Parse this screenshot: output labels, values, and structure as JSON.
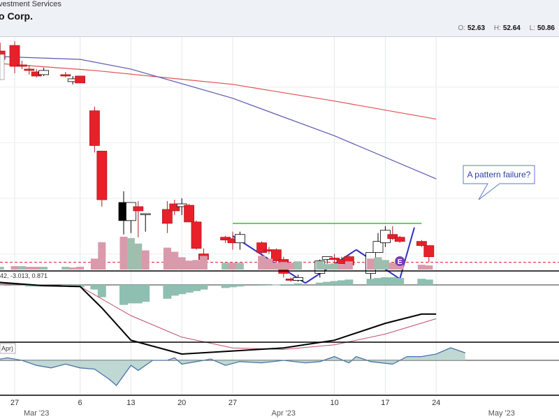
{
  "header": {
    "subtitle": "vestment Services",
    "title": "o Corp.",
    "ohlc": [
      {
        "label": "O:",
        "value": "52.63"
      },
      {
        "label": "H:",
        "value": "52.64"
      },
      {
        "label": "L:",
        "value": "50.86"
      }
    ]
  },
  "annotation": {
    "text": "A pattern failure?"
  },
  "macd_label": "42, -3.013, 0.871",
  "lower_label": "Apr)",
  "earnings_badge": "E",
  "x_axis": {
    "ticks": [
      {
        "day": -1,
        "label": "27"
      },
      {
        "day": 8,
        "label": "6"
      },
      {
        "day": 15,
        "label": "13"
      },
      {
        "day": 22,
        "label": "20"
      },
      {
        "day": 29,
        "label": "27"
      },
      {
        "day": 43,
        "label": "10"
      },
      {
        "day": 50,
        "label": "17"
      },
      {
        "day": 57,
        "label": "24"
      }
    ],
    "months": [
      {
        "day": 2,
        "label": "Mar '23"
      },
      {
        "day": 36,
        "label": "Apr '23"
      },
      {
        "day": 66,
        "label": "May '23"
      }
    ]
  },
  "colors": {
    "up": "#ffffff",
    "down": "#e8202a",
    "black_candle": "#000000",
    "ma_red": "#e05050",
    "ma_blue": "#5a5ab0",
    "trendline": "#3030c0",
    "resistance": "#22cc22",
    "vol_up": "#9ebfae",
    "vol_down": "#d99aab",
    "hist": "#8fbfb0",
    "macd": "#000000",
    "signal": "#c0506a"
  },
  "chart_data": {
    "type": "candlestick",
    "x_unit": "day offset from Mar 1 2023",
    "candles": [
      {
        "d": -3,
        "o": 60.6,
        "h": 61.2,
        "l": 59.0,
        "c": 60.0
      },
      {
        "d": -1,
        "o": 61.0,
        "h": 61.3,
        "l": 59.0,
        "c": 59.5
      },
      {
        "d": 0,
        "o": 59.6,
        "h": 59.9,
        "l": 59.3,
        "c": 59.5
      },
      {
        "d": 1,
        "o": 59.3,
        "h": 59.6,
        "l": 58.9,
        "c": 59.2
      },
      {
        "d": 2,
        "o": 59.1,
        "h": 59.3,
        "l": 58.7,
        "c": 58.8
      },
      {
        "d": 3,
        "o": 58.9,
        "h": 59.4,
        "l": 58.8,
        "c": 59.2
      },
      {
        "d": 6,
        "o": 58.9,
        "h": 59.1,
        "l": 58.7,
        "c": 58.8
      },
      {
        "d": 7,
        "o": 58.4,
        "h": 58.8,
        "l": 58.2,
        "c": 58.6
      },
      {
        "d": 8,
        "o": 58.8,
        "h": 58.8,
        "l": 58.3,
        "c": 58.3
      },
      {
        "d": 10,
        "o": 56.3,
        "h": 56.6,
        "l": 53.3,
        "c": 53.8
      },
      {
        "d": 11,
        "o": 53.4,
        "h": 53.4,
        "l": 49.4,
        "c": 49.9
      },
      {
        "d": 14,
        "o": 49.7,
        "h": 50.5,
        "l": 47.4,
        "c": 48.4
      },
      {
        "d": 15,
        "o": 48.4,
        "h": 49.6,
        "l": 47.5,
        "c": 49.7
      },
      {
        "d": 16,
        "o": 49.4,
        "h": 49.8,
        "l": 47.2,
        "c": 49.1
      },
      {
        "d": 17,
        "o": 48.9,
        "h": 48.9,
        "l": 47.6,
        "c": 48.9
      },
      {
        "d": 20,
        "o": 49.2,
        "h": 49.8,
        "l": 47.5,
        "c": 48.2
      },
      {
        "d": 21,
        "o": 49.6,
        "h": 49.9,
        "l": 48.8,
        "c": 49.1
      },
      {
        "d": 22,
        "o": 49.4,
        "h": 50.0,
        "l": 48.8,
        "c": 49.6
      },
      {
        "d": 23,
        "o": 49.5,
        "h": 49.6,
        "l": 48.3,
        "c": 48.3
      },
      {
        "d": 24,
        "o": 48.3,
        "h": 48.4,
        "l": 46.3,
        "c": 46.4
      },
      {
        "d": 25,
        "o": 46.0,
        "h": 46.4,
        "l": 45.0,
        "c": 45.6
      },
      {
        "d": 28,
        "o": 47.2,
        "h": 47.3,
        "l": 46.8,
        "c": 47.0
      },
      {
        "d": 29,
        "o": 47.1,
        "h": 47.6,
        "l": 46.3,
        "c": 46.8
      },
      {
        "d": 30,
        "o": 46.8,
        "h": 47.6,
        "l": 46.3,
        "c": 47.4
      },
      {
        "d": 33,
        "o": 46.8,
        "h": 46.9,
        "l": 45.9,
        "c": 46.1
      },
      {
        "d": 34,
        "o": 46.3,
        "h": 46.5,
        "l": 46.0,
        "c": 46.2
      },
      {
        "d": 35,
        "o": 46.3,
        "h": 46.4,
        "l": 45.4,
        "c": 45.5
      },
      {
        "d": 36,
        "o": 45.6,
        "h": 45.8,
        "l": 44.3,
        "c": 44.6
      },
      {
        "d": 37,
        "o": 44.2,
        "h": 44.3,
        "l": 44.0,
        "c": 44.1
      },
      {
        "d": 38,
        "o": 44.1,
        "h": 44.5,
        "l": 44.0,
        "c": 44.3
      },
      {
        "d": 41,
        "o": 44.6,
        "h": 45.6,
        "l": 44.3,
        "c": 45.5
      },
      {
        "d": 42,
        "o": 45.6,
        "h": 45.8,
        "l": 45.3,
        "c": 45.8
      },
      {
        "d": 43,
        "o": 45.7,
        "h": 46.0,
        "l": 45.2,
        "c": 45.6
      },
      {
        "d": 44,
        "o": 45.6,
        "h": 45.8,
        "l": 45.3,
        "c": 45.3
      },
      {
        "d": 45,
        "o": 45.8,
        "h": 45.9,
        "l": 45.1,
        "c": 45.2
      },
      {
        "d": 48,
        "o": 44.6,
        "h": 46.1,
        "l": 44.1,
        "c": 46.1
      },
      {
        "d": 49,
        "o": 46.1,
        "h": 47.5,
        "l": 46.1,
        "c": 46.9
      },
      {
        "d": 50,
        "o": 46.8,
        "h": 48.0,
        "l": 46.5,
        "c": 47.7
      },
      {
        "d": 51,
        "o": 47.4,
        "h": 48.0,
        "l": 47.0,
        "c": 47.1
      },
      {
        "d": 52,
        "o": 47.2,
        "h": 47.3,
        "l": 46.8,
        "c": 46.9
      },
      {
        "d": 55,
        "o": 46.9,
        "h": 47.0,
        "l": 46.5,
        "c": 46.6
      },
      {
        "d": 56,
        "o": 46.6,
        "h": 46.6,
        "l": 45.4,
        "c": 45.8
      }
    ],
    "black_candle_day": 14,
    "moving_averages": [
      {
        "color": "#e05050",
        "points": [
          [
            -3,
            59.7
          ],
          [
            10,
            59.2
          ],
          [
            29,
            58.2
          ],
          [
            43,
            57.0
          ],
          [
            57,
            55.7
          ]
        ]
      },
      {
        "color": "#5a5ab0",
        "points": [
          [
            -3,
            60.2
          ],
          [
            8,
            60.0
          ],
          [
            15,
            59.3
          ],
          [
            29,
            57.2
          ],
          [
            43,
            54.5
          ],
          [
            57,
            51.4
          ]
        ]
      }
    ],
    "volume": [
      {
        "d": -3,
        "v": 4,
        "up": true
      },
      {
        "d": -1,
        "v": 5,
        "up": false
      },
      {
        "d": 0,
        "v": 5,
        "up": true
      },
      {
        "d": 1,
        "v": 4,
        "up": false
      },
      {
        "d": 2,
        "v": 4,
        "up": false
      },
      {
        "d": 3,
        "v": 4,
        "up": true
      },
      {
        "d": 6,
        "v": 4,
        "up": true
      },
      {
        "d": 7,
        "v": 3,
        "up": false
      },
      {
        "d": 8,
        "v": 4,
        "up": false
      },
      {
        "d": 10,
        "v": 16,
        "up": false
      },
      {
        "d": 11,
        "v": 40,
        "up": false
      },
      {
        "d": 14,
        "v": 48,
        "up": false
      },
      {
        "d": 15,
        "v": 46,
        "up": true
      },
      {
        "d": 16,
        "v": 38,
        "up": true
      },
      {
        "d": 17,
        "v": 28,
        "up": false
      },
      {
        "d": 20,
        "v": 32,
        "up": false
      },
      {
        "d": 21,
        "v": 26,
        "up": false
      },
      {
        "d": 22,
        "v": 18,
        "up": false
      },
      {
        "d": 23,
        "v": 13,
        "up": false
      },
      {
        "d": 24,
        "v": 14,
        "up": false
      },
      {
        "d": 25,
        "v": 20,
        "up": false
      },
      {
        "d": 28,
        "v": 10,
        "up": true
      },
      {
        "d": 29,
        "v": 10,
        "up": false
      },
      {
        "d": 30,
        "v": 10,
        "up": true
      },
      {
        "d": 33,
        "v": 20,
        "up": false
      },
      {
        "d": 34,
        "v": 16,
        "up": false
      },
      {
        "d": 35,
        "v": 10,
        "up": false
      },
      {
        "d": 36,
        "v": 11,
        "up": false
      },
      {
        "d": 37,
        "v": 10,
        "up": false
      },
      {
        "d": 38,
        "v": 12,
        "up": true
      },
      {
        "d": 41,
        "v": 12,
        "up": true
      },
      {
        "d": 42,
        "v": 8,
        "up": true
      },
      {
        "d": 43,
        "v": 9,
        "up": true
      },
      {
        "d": 44,
        "v": 8,
        "up": false
      },
      {
        "d": 45,
        "v": 12,
        "up": false
      },
      {
        "d": 48,
        "v": 16,
        "up": false
      },
      {
        "d": 49,
        "v": 18,
        "up": true
      },
      {
        "d": 50,
        "v": 14,
        "up": true
      },
      {
        "d": 51,
        "v": 10,
        "up": false
      },
      {
        "d": 52,
        "v": 9,
        "up": false
      },
      {
        "d": 55,
        "v": 7,
        "up": false
      },
      {
        "d": 56,
        "v": 6,
        "up": false
      }
    ],
    "macd_hist": [
      {
        "d": -3,
        "v": 0.0
      },
      {
        "d": -1,
        "v": -0.05
      },
      {
        "d": 0,
        "v": -0.05
      },
      {
        "d": 1,
        "v": -0.1
      },
      {
        "d": 2,
        "v": -0.1
      },
      {
        "d": 3,
        "v": -0.1
      },
      {
        "d": 6,
        "v": -0.1
      },
      {
        "d": 7,
        "v": -0.15
      },
      {
        "d": 8,
        "v": -0.15
      },
      {
        "d": 10,
        "v": -0.3
      },
      {
        "d": 11,
        "v": -0.8
      },
      {
        "d": 14,
        "v": -1.3
      },
      {
        "d": 15,
        "v": -1.2
      },
      {
        "d": 16,
        "v": -1.2
      },
      {
        "d": 17,
        "v": -1.1
      },
      {
        "d": 20,
        "v": -0.9
      },
      {
        "d": 21,
        "v": -0.7
      },
      {
        "d": 22,
        "v": -0.6
      },
      {
        "d": 23,
        "v": -0.5
      },
      {
        "d": 24,
        "v": -0.4
      },
      {
        "d": 25,
        "v": -0.3
      },
      {
        "d": 28,
        "v": -0.2
      },
      {
        "d": 29,
        "v": -0.15
      },
      {
        "d": 30,
        "v": -0.1
      },
      {
        "d": 33,
        "v": -0.05
      },
      {
        "d": 34,
        "v": 0.0
      },
      {
        "d": 35,
        "v": 0.02
      },
      {
        "d": 36,
        "v": 0.05
      },
      {
        "d": 37,
        "v": 0.05
      },
      {
        "d": 38,
        "v": 0.1
      },
      {
        "d": 41,
        "v": 0.15
      },
      {
        "d": 42,
        "v": 0.2
      },
      {
        "d": 43,
        "v": 0.25
      },
      {
        "d": 44,
        "v": 0.3
      },
      {
        "d": 45,
        "v": 0.35
      },
      {
        "d": 48,
        "v": 0.4
      },
      {
        "d": 49,
        "v": 0.45
      },
      {
        "d": 50,
        "v": 0.5
      },
      {
        "d": 51,
        "v": 0.5
      },
      {
        "d": 52,
        "v": 0.45
      },
      {
        "d": 55,
        "v": 0.4
      },
      {
        "d": 56,
        "v": 0.35
      }
    ],
    "macd_line": [
      [
        -4,
        0.2
      ],
      [
        3,
        -0.05
      ],
      [
        8,
        -0.1
      ],
      [
        11,
        -1.5
      ],
      [
        15,
        -3.6
      ],
      [
        22,
        -4.5
      ],
      [
        29,
        -4.3
      ],
      [
        36,
        -4.1
      ],
      [
        43,
        -3.6
      ],
      [
        50,
        -2.5
      ],
      [
        55,
        -1.9
      ],
      [
        57,
        -1.9
      ]
    ],
    "signal_line": [
      [
        -4,
        0.1
      ],
      [
        8,
        -0.1
      ],
      [
        15,
        -2.0
      ],
      [
        22,
        -3.4
      ],
      [
        29,
        -4.1
      ],
      [
        36,
        -4.2
      ],
      [
        43,
        -3.9
      ],
      [
        50,
        -3.2
      ],
      [
        57,
        -2.2
      ]
    ],
    "lower_line": [
      [
        -4,
        0.0
      ],
      [
        -2,
        0.2
      ],
      [
        0,
        0.0
      ],
      [
        2,
        -0.4
      ],
      [
        4,
        -0.6
      ],
      [
        6,
        -0.3
      ],
      [
        8,
        -0.6
      ],
      [
        10,
        -0.7
      ],
      [
        12,
        -1.5
      ],
      [
        13,
        -2.0
      ],
      [
        15,
        -0.4
      ],
      [
        16,
        -0.8
      ],
      [
        18,
        0.0
      ],
      [
        20,
        0.0
      ],
      [
        21,
        0.2
      ],
      [
        22,
        -0.3
      ],
      [
        24,
        -0.1
      ],
      [
        26,
        0.1
      ],
      [
        28,
        -0.4
      ],
      [
        30,
        -0.1
      ],
      [
        33,
        -0.2
      ],
      [
        36,
        0.0
      ],
      [
        39,
        -0.2
      ],
      [
        41,
        -0.1
      ],
      [
        43,
        0.3
      ],
      [
        45,
        -0.2
      ],
      [
        46,
        0.3
      ],
      [
        48,
        -0.1
      ],
      [
        51,
        -0.3
      ],
      [
        53,
        0.3
      ],
      [
        55,
        0.3
      ],
      [
        57,
        0.5
      ],
      [
        59,
        1.0
      ],
      [
        61,
        0.6
      ]
    ],
    "resistance_line": {
      "d1": 29,
      "d2": 55,
      "price": 48.2
    },
    "pattern_segments": [
      [
        [
          29,
          47.3
        ],
        [
          39,
          43.9
        ]
      ],
      [
        [
          39,
          43.9
        ],
        [
          46,
          46.3
        ]
      ],
      [
        [
          46,
          46.3
        ],
        [
          52,
          44.2
        ]
      ],
      [
        [
          52,
          44.2
        ],
        [
          54,
          47.9
        ]
      ]
    ],
    "dashed_level": 45.4,
    "stop_marker": {
      "d": 15,
      "price": 45.8
    },
    "earnings_day": 52
  }
}
